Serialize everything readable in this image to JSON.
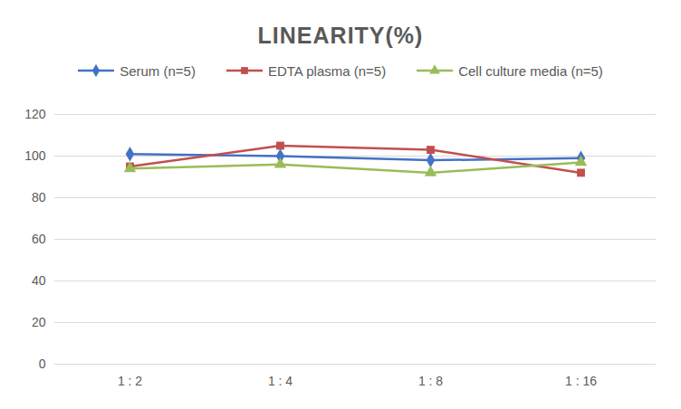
{
  "chart_data": {
    "type": "line",
    "title": "LINEARITY(%)",
    "categories": [
      "1 : 2",
      "1 : 4",
      "1 : 8",
      "1 : 16"
    ],
    "series": [
      {
        "name": "Serum (n=5)",
        "color": "#4472c4",
        "marker": "diamond",
        "values": [
          101,
          100,
          98,
          99
        ]
      },
      {
        "name": "EDTA plasma (n=5)",
        "color": "#c0504d",
        "marker": "square",
        "values": [
          95,
          105,
          103,
          92
        ]
      },
      {
        "name": "Cell culture media (n=5)",
        "color": "#9bbb59",
        "marker": "triangle",
        "values": [
          94,
          96,
          92,
          97
        ]
      }
    ],
    "ylim": [
      0,
      120
    ],
    "yticks": [
      0,
      20,
      40,
      60,
      80,
      100,
      120
    ],
    "grid": true,
    "legend": "top"
  }
}
